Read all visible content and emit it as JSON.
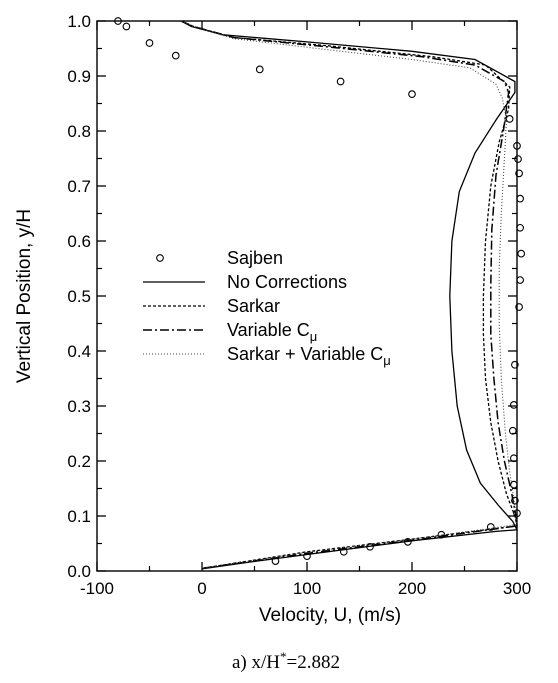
{
  "chart_data": {
    "type": "line",
    "caption": "a)  x/H*=2.882",
    "xlabel": "Velocity, U, (m/s)",
    "ylabel": "Vertical Position, y/H",
    "xlim": [
      -100,
      300
    ],
    "ylim": [
      0.0,
      1.0
    ],
    "xticks": [
      "-100",
      "0",
      "100",
      "200",
      "300"
    ],
    "yticks": [
      "0.0",
      "0.1",
      "0.2",
      "0.3",
      "0.4",
      "0.5",
      "0.6",
      "0.7",
      "0.8",
      "0.9",
      "1.0"
    ],
    "grid": false,
    "legend_position": "center-left",
    "series": [
      {
        "name": "Sajben",
        "style": "circle",
        "points": [
          [
            -80,
            1.0
          ],
          [
            -72,
            0.99
          ],
          [
            -50,
            0.96
          ],
          [
            -25,
            0.937
          ],
          [
            55,
            0.912
          ],
          [
            132,
            0.89
          ],
          [
            200,
            0.867
          ],
          [
            293,
            0.822
          ],
          [
            300,
            0.773
          ],
          [
            301,
            0.749
          ],
          [
            302,
            0.723
          ],
          [
            303,
            0.677
          ],
          [
            303,
            0.624
          ],
          [
            304,
            0.577
          ],
          [
            303,
            0.529
          ],
          [
            302,
            0.48
          ],
          [
            298,
            0.375
          ],
          [
            297,
            0.302
          ],
          [
            296,
            0.255
          ],
          [
            297,
            0.205
          ],
          [
            297,
            0.157
          ],
          [
            298,
            0.128
          ],
          [
            300,
            0.105
          ],
          [
            275,
            0.08
          ],
          [
            228,
            0.066
          ],
          [
            196,
            0.053
          ],
          [
            160,
            0.044
          ],
          [
            135,
            0.035
          ],
          [
            100,
            0.027
          ],
          [
            70,
            0.018
          ]
        ]
      },
      {
        "name": "No Corrections",
        "style": "solid",
        "points": [
          [
            -20,
            1.0
          ],
          [
            -10,
            0.99
          ],
          [
            20,
            0.975
          ],
          [
            100,
            0.962
          ],
          [
            200,
            0.945
          ],
          [
            260,
            0.93
          ],
          [
            298,
            0.89
          ],
          [
            298,
            0.87
          ],
          [
            280,
            0.82
          ],
          [
            260,
            0.76
          ],
          [
            245,
            0.69
          ],
          [
            238,
            0.6
          ],
          [
            236,
            0.5
          ],
          [
            238,
            0.4
          ],
          [
            243,
            0.3
          ],
          [
            252,
            0.22
          ],
          [
            265,
            0.16
          ],
          [
            282,
            0.12
          ],
          [
            296,
            0.09
          ],
          [
            300,
            0.075
          ],
          [
            280,
            0.072
          ],
          [
            200,
            0.055
          ],
          [
            100,
            0.03
          ],
          [
            40,
            0.015
          ],
          [
            0,
            0.004
          ]
        ]
      },
      {
        "name": "Sarkar",
        "style": "dashed",
        "points": [
          [
            -20,
            1.0
          ],
          [
            -8,
            0.99
          ],
          [
            30,
            0.97
          ],
          [
            120,
            0.955
          ],
          [
            220,
            0.935
          ],
          [
            270,
            0.92
          ],
          [
            293,
            0.88
          ],
          [
            292,
            0.84
          ],
          [
            283,
            0.78
          ],
          [
            275,
            0.7
          ],
          [
            270,
            0.6
          ],
          [
            268,
            0.5
          ],
          [
            268,
            0.43
          ],
          [
            270,
            0.35
          ],
          [
            275,
            0.27
          ],
          [
            282,
            0.2
          ],
          [
            290,
            0.14
          ],
          [
            298,
            0.1
          ],
          [
            300,
            0.082
          ],
          [
            270,
            0.075
          ],
          [
            200,
            0.058
          ],
          [
            100,
            0.035
          ],
          [
            0,
            0.005
          ]
        ]
      },
      {
        "name": "Variable Cμ",
        "style": "dashdot",
        "points": [
          [
            -20,
            1.0
          ],
          [
            -8,
            0.99
          ],
          [
            30,
            0.97
          ],
          [
            120,
            0.953
          ],
          [
            210,
            0.935
          ],
          [
            260,
            0.92
          ],
          [
            288,
            0.89
          ],
          [
            292,
            0.87
          ],
          [
            287,
            0.8
          ],
          [
            280,
            0.72
          ],
          [
            276,
            0.62
          ],
          [
            275,
            0.52
          ],
          [
            275,
            0.43
          ],
          [
            278,
            0.35
          ],
          [
            282,
            0.27
          ],
          [
            288,
            0.2
          ],
          [
            295,
            0.14
          ],
          [
            299,
            0.1
          ],
          [
            300,
            0.082
          ],
          [
            270,
            0.074
          ],
          [
            200,
            0.056
          ],
          [
            100,
            0.032
          ],
          [
            0,
            0.005
          ]
        ]
      },
      {
        "name": "Sarkar + Variable Cμ",
        "style": "dotted",
        "points": [
          [
            -20,
            1.0
          ],
          [
            -8,
            0.99
          ],
          [
            30,
            0.968
          ],
          [
            110,
            0.95
          ],
          [
            200,
            0.93
          ],
          [
            255,
            0.915
          ],
          [
            280,
            0.885
          ],
          [
            286,
            0.86
          ],
          [
            290,
            0.82
          ],
          [
            288,
            0.75
          ],
          [
            285,
            0.65
          ],
          [
            283,
            0.55
          ],
          [
            283,
            0.45
          ],
          [
            285,
            0.35
          ],
          [
            289,
            0.25
          ],
          [
            293,
            0.18
          ],
          [
            297,
            0.13
          ],
          [
            300,
            0.095
          ],
          [
            300,
            0.085
          ],
          [
            270,
            0.076
          ],
          [
            200,
            0.058
          ],
          [
            100,
            0.034
          ],
          [
            0,
            0.005
          ]
        ]
      }
    ],
    "legend": [
      {
        "label": "Sajben",
        "style": "circle"
      },
      {
        "label": "No Corrections",
        "style": "solid"
      },
      {
        "label": "Sarkar",
        "style": "dashed"
      },
      {
        "label": "Variable C",
        "sub": "μ",
        "style": "dashdot"
      },
      {
        "label": "Sarkar + Variable C",
        "sub": "μ",
        "style": "dotted"
      }
    ]
  }
}
